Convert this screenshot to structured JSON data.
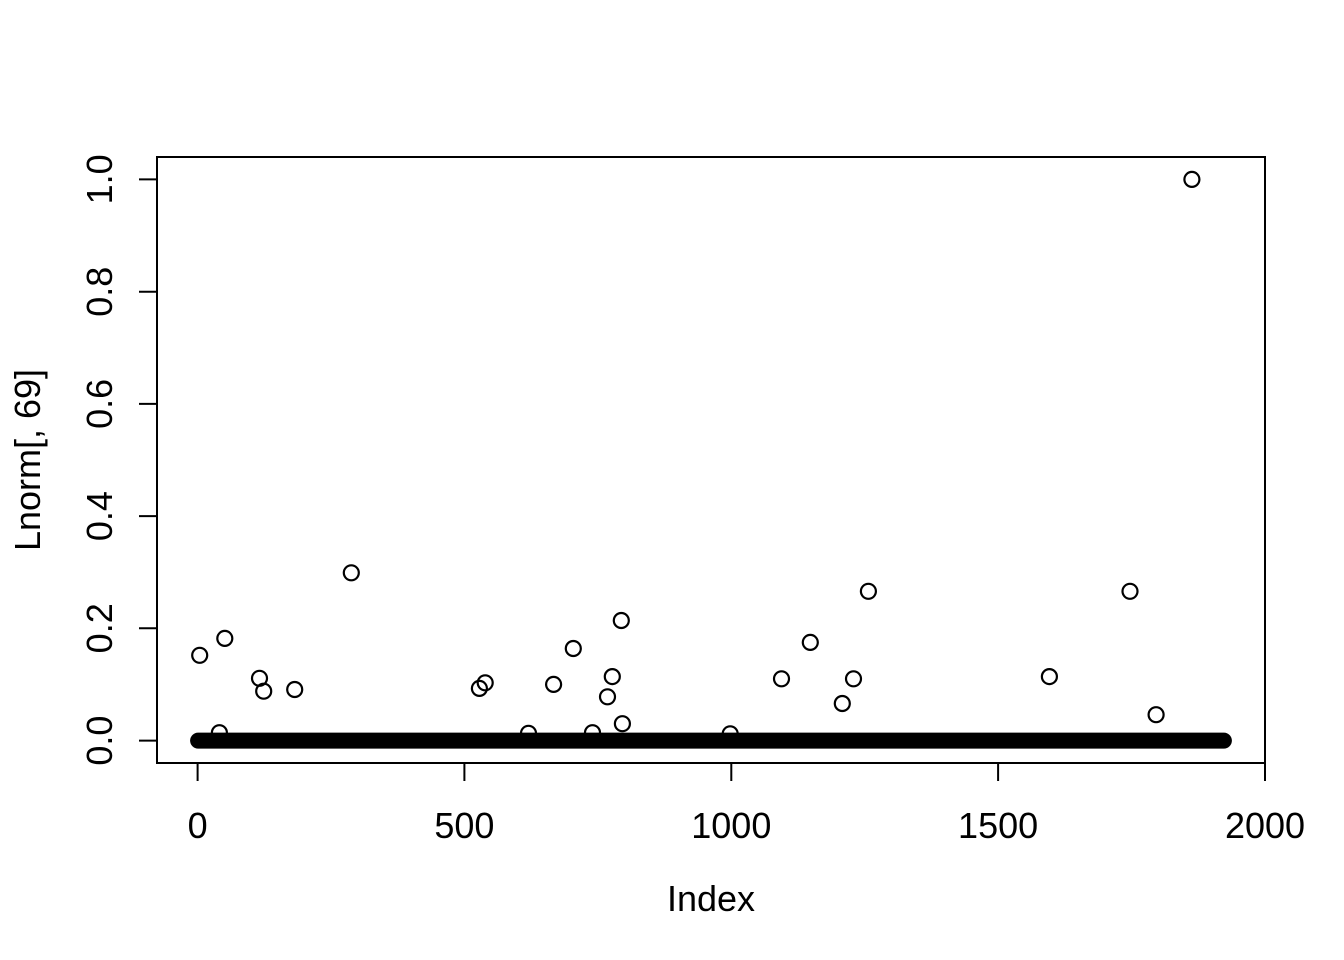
{
  "figure": {
    "background_color": "#ffffff",
    "foreground_color": "#000000"
  },
  "chart_data": {
    "type": "scatter",
    "title": "",
    "xlabel": "Index",
    "ylabel": "Lnorm[, 69]",
    "xlim": [
      -76,
      2000
    ],
    "ylim": [
      -0.04,
      1.04
    ],
    "x_ticks": [
      0,
      500,
      1000,
      1500,
      2000
    ],
    "x_tick_labels": [
      "0",
      "500",
      "1000",
      "1500",
      "2000"
    ],
    "y_ticks": [
      0.0,
      0.2,
      0.4,
      0.6,
      0.8,
      1.0
    ],
    "y_tick_labels": [
      "0.0",
      "0.2",
      "0.4",
      "0.6",
      "0.8",
      "1.0"
    ],
    "grid": false,
    "legend": null,
    "marker": "open-circle",
    "color": "#000000",
    "dense_band": {
      "description": "solid-looking run of many overlapping open-circle points at y near 0",
      "x_start": 1,
      "x_end": 1923,
      "y": 0.0
    },
    "points": [
      [
        4,
        0.152
      ],
      [
        41,
        0.014
      ],
      [
        51,
        0.182
      ],
      [
        116,
        0.111
      ],
      [
        124,
        0.088
      ],
      [
        182,
        0.091
      ],
      [
        288,
        0.299
      ],
      [
        528,
        0.093
      ],
      [
        539,
        0.103
      ],
      [
        620,
        0.013
      ],
      [
        667,
        0.1
      ],
      [
        704,
        0.164
      ],
      [
        740,
        0.014
      ],
      [
        768,
        0.078
      ],
      [
        777,
        0.114
      ],
      [
        794,
        0.214
      ],
      [
        796,
        0.03
      ],
      [
        998,
        0.012
      ],
      [
        1094,
        0.11
      ],
      [
        1148,
        0.175
      ],
      [
        1208,
        0.066
      ],
      [
        1229,
        0.11
      ],
      [
        1257,
        0.266
      ],
      [
        1596,
        0.114
      ],
      [
        1747,
        0.266
      ],
      [
        1796,
        0.046
      ],
      [
        1863,
        1.0
      ]
    ]
  }
}
